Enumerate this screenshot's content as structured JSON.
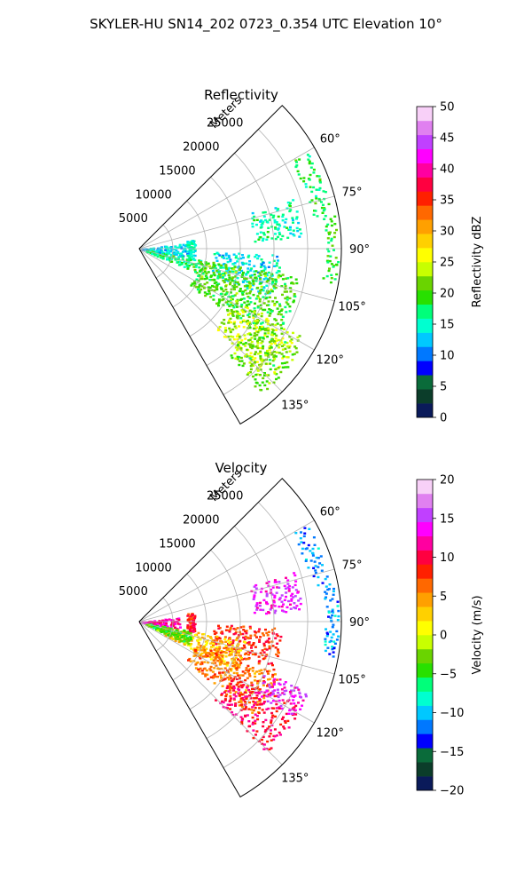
{
  "figure": {
    "suptitle": "SKYLER-HU  SN14_202  0723_0.354 UTC Elevation 10°"
  },
  "chart_data": [
    {
      "type": "heatmap",
      "projection": "polar-sector",
      "title": "Reflectivity",
      "radial_label": "Meters",
      "radial_ticks": [
        5000,
        10000,
        15000,
        20000,
        25000
      ],
      "radial_tick_labels": [
        "5000",
        "10000",
        "15000",
        "20000",
        "25000"
      ],
      "rlim": [
        0,
        30000
      ],
      "azimuth_range_deg": [
        45,
        150
      ],
      "azimuth_ticks_deg": [
        60,
        75,
        90,
        105,
        120,
        135
      ],
      "azimuth_tick_labels": [
        "60°",
        "75°",
        "90°",
        "105°",
        "120°",
        "135°"
      ],
      "grid": true,
      "colormap": "pyart_HomeyerRainbow",
      "colorbar": {
        "label": "Reflectivity dBZ",
        "vmin": 0,
        "vmax": 50,
        "ticks": [
          0,
          5,
          10,
          15,
          20,
          25,
          30,
          35,
          40,
          45,
          50
        ],
        "tick_labels": [
          "0",
          "5",
          "10",
          "15",
          "20",
          "25",
          "30",
          "35",
          "40",
          "45",
          "50"
        ],
        "colors": [
          "#0a1a5a",
          "#0b3d2a",
          "#0a6b3a",
          "#0000ff",
          "#0078ff",
          "#00c8ff",
          "#00ffd0",
          "#00ff7a",
          "#28e000",
          "#6ad400",
          "#c8ff00",
          "#ffff00",
          "#ffd000",
          "#ffa000",
          "#ff6800",
          "#ff2000",
          "#ff0040",
          "#ff00a0",
          "#ff00ff",
          "#c040ff",
          "#e080f0",
          "#f8d0f8"
        ]
      },
      "cells": [
        {
          "az": [
            60,
            80
          ],
          "r": [
            26000,
            28800
          ],
          "value": 18
        },
        {
          "az": [
            80,
            100
          ],
          "r": [
            27500,
            29500
          ],
          "value": 19
        },
        {
          "az": [
            72,
            86
          ],
          "r": [
            17000,
            24000
          ],
          "value": 16
        },
        {
          "az": [
            92,
            110
          ],
          "r": [
            11000,
            21000
          ],
          "value": 14
        },
        {
          "az": [
            100,
            126
          ],
          "r": [
            9000,
            24000
          ],
          "value": 20
        },
        {
          "az": [
            118,
            136
          ],
          "r": [
            16000,
            27000
          ],
          "value": 24
        },
        {
          "az": [
            122,
            140
          ],
          "r": [
            20000,
            28000
          ],
          "value": 21
        },
        {
          "az": [
            83,
            100
          ],
          "r": [
            0,
            7500
          ],
          "value": 13
        },
        {
          "az": [
            100,
            112
          ],
          "r": [
            1000,
            10000
          ],
          "value": 18
        },
        {
          "az": [
            80,
            100
          ],
          "r": [
            7000,
            8200
          ],
          "value": 15
        }
      ]
    },
    {
      "type": "heatmap",
      "projection": "polar-sector",
      "title": "Velocity",
      "radial_label": "Meters",
      "radial_ticks": [
        5000,
        10000,
        15000,
        20000,
        25000
      ],
      "radial_tick_labels": [
        "5000",
        "10000",
        "15000",
        "20000",
        "25000"
      ],
      "rlim": [
        0,
        30000
      ],
      "azimuth_range_deg": [
        45,
        150
      ],
      "azimuth_ticks_deg": [
        60,
        75,
        90,
        105,
        120,
        135
      ],
      "azimuth_tick_labels": [
        "60°",
        "75°",
        "90°",
        "105°",
        "120°",
        "135°"
      ],
      "grid": true,
      "colormap": "pyart_HomeyerRainbow",
      "colorbar": {
        "label": "Velocity (m/s)",
        "vmin": -20,
        "vmax": 20,
        "ticks": [
          -20,
          -15,
          -10,
          -5,
          0,
          5,
          10,
          15,
          20
        ],
        "tick_labels": [
          "−20",
          "−15",
          "−10",
          "−5",
          "0",
          "5",
          "10",
          "15",
          "20"
        ],
        "colors": [
          "#0a1a5a",
          "#0b3d2a",
          "#0a6b3a",
          "#0000ff",
          "#0078ff",
          "#00c8ff",
          "#00ffd0",
          "#00ff7a",
          "#28e000",
          "#6ad400",
          "#c8ff00",
          "#ffff00",
          "#ffd000",
          "#ffa000",
          "#ff6800",
          "#ff2000",
          "#ff0040",
          "#ff00a0",
          "#ff00ff",
          "#c040ff",
          "#e080f0",
          "#f8d0f8"
        ]
      },
      "cells": [
        {
          "az": [
            60,
            80
          ],
          "r": [
            26000,
            28800
          ],
          "value": -11
        },
        {
          "az": [
            80,
            100
          ],
          "r": [
            27500,
            29500
          ],
          "value": -11
        },
        {
          "az": [
            72,
            86
          ],
          "r": [
            17000,
            24000
          ],
          "value": 14
        },
        {
          "az": [
            92,
            110
          ],
          "r": [
            11000,
            21000
          ],
          "value": 8
        },
        {
          "az": [
            100,
            118
          ],
          "r": [
            4000,
            16000
          ],
          "value": 3
        },
        {
          "az": [
            110,
            130
          ],
          "r": [
            9000,
            22000
          ],
          "value": 6
        },
        {
          "az": [
            118,
            136
          ],
          "r": [
            16000,
            27000
          ],
          "value": 10
        },
        {
          "az": [
            112,
            122
          ],
          "r": [
            20000,
            27000
          ],
          "value": 14
        },
        {
          "az": [
            83,
            100
          ],
          "r": [
            0,
            6000
          ],
          "value": 12
        },
        {
          "az": [
            100,
            115
          ],
          "r": [
            1000,
            8000
          ],
          "value": -4
        },
        {
          "az": [
            80,
            100
          ],
          "r": [
            7000,
            8200
          ],
          "value": 9
        }
      ]
    }
  ]
}
